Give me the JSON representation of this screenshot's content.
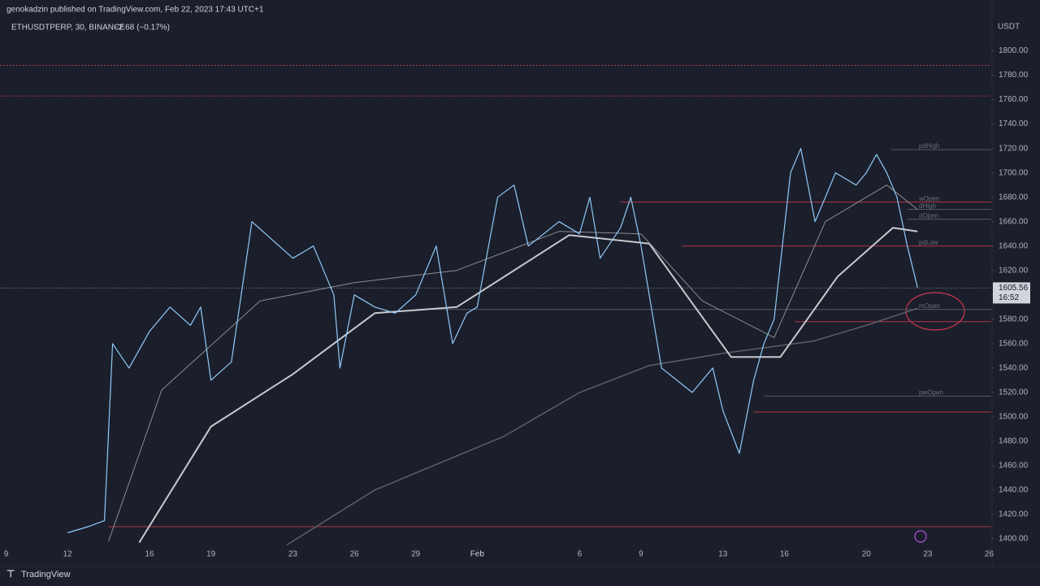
{
  "header": "genokadzin published on TradingView.com, Feb 22, 2023 17:43 UTC+1",
  "footer": "TradingView",
  "chart_data": {
    "type": "line",
    "symbol": "ETHUSDTPERP, 30, BINANCE",
    "change": "−2.68 (−0.17%)",
    "currency": "USDT",
    "xlim": [
      -0.3,
      48.1
    ],
    "ylim": [
      1392,
      1825
    ],
    "xticks": [
      {
        "value": 0,
        "label": "9"
      },
      {
        "value": 3,
        "label": "12"
      },
      {
        "value": 7,
        "label": "16"
      },
      {
        "value": 10,
        "label": "19"
      },
      {
        "value": 14,
        "label": "23"
      },
      {
        "value": 17,
        "label": "26"
      },
      {
        "value": 20,
        "label": "29"
      },
      {
        "value": 23,
        "label": "Feb"
      },
      {
        "value": 28,
        "label": "6"
      },
      {
        "value": 31,
        "label": "9"
      },
      {
        "value": 35,
        "label": "13"
      },
      {
        "value": 38,
        "label": "16"
      },
      {
        "value": 42,
        "label": "20"
      },
      {
        "value": 45,
        "label": "23"
      },
      {
        "value": 48,
        "label": "26"
      }
    ],
    "yticks": [
      {
        "value": 1400,
        "label": "1400.00"
      },
      {
        "value": 1420,
        "label": "1420.00"
      },
      {
        "value": 1440,
        "label": "1440.00"
      },
      {
        "value": 1460,
        "label": "1460.00"
      },
      {
        "value": 1480,
        "label": "1480.00"
      },
      {
        "value": 1500,
        "label": "1500.00"
      },
      {
        "value": 1520,
        "label": "1520.00"
      },
      {
        "value": 1540,
        "label": "1540.00"
      },
      {
        "value": 1560,
        "label": "1560.00"
      },
      {
        "value": 1580,
        "label": "1580.00"
      },
      {
        "value": 1600,
        "label": "1600.00"
      },
      {
        "value": 1620,
        "label": "1620.00"
      },
      {
        "value": 1640,
        "label": "1640.00"
      },
      {
        "value": 1660,
        "label": "1660.00"
      },
      {
        "value": 1680,
        "label": "1680.00"
      },
      {
        "value": 1700,
        "label": "1700.00"
      },
      {
        "value": 1720,
        "label": "1720.00"
      },
      {
        "value": 1740,
        "label": "1740.00"
      },
      {
        "value": 1760,
        "label": "1760.00"
      },
      {
        "value": 1780,
        "label": "1780.00"
      },
      {
        "value": 1800,
        "label": "1800.00"
      }
    ],
    "series": [
      {
        "color": "#5d6069",
        "x": [
          13.7,
          18,
          24.3,
          28,
          31.4,
          35,
          39.4,
          42,
          44.5
        ],
        "values": [
          1395,
          1440,
          1484,
          1520,
          1542,
          1552,
          1562,
          1575,
          1589
        ]
      },
      {
        "color": "#c8c9cc",
        "x": [
          6.5,
          10,
          14,
          18,
          22,
          27.5,
          31.4,
          35.4,
          37.8,
          40.6,
          43.3,
          44.5
        ],
        "values": [
          1397,
          1492,
          1535,
          1585,
          1590,
          1649,
          1642,
          1549,
          1549,
          1615,
          1655,
          1652
        ]
      },
      {
        "color": "#8a8d95",
        "x": [
          5,
          7.6,
          12.4,
          17,
          22,
          27,
          31,
          34,
          37.5,
          40,
          43,
          44.5
        ],
        "values": [
          1398,
          1522,
          1595,
          1610,
          1620,
          1652,
          1650,
          1595,
          1565,
          1660,
          1690,
          1670
        ]
      },
      {
        "color": "#90caf9",
        "x": [
          3,
          4,
          4.8,
          5.2,
          6,
          7,
          8,
          9,
          9.5,
          10,
          11,
          12,
          13,
          14,
          15,
          16,
          16.3,
          17,
          18,
          19,
          20,
          21,
          21.8,
          22.5,
          23,
          24,
          24.8,
          25.5,
          27,
          28,
          28.5,
          29,
          30,
          30.5,
          31,
          31.8,
          32,
          33.5,
          34.5,
          35,
          35.8,
          36.5,
          37,
          37.5,
          38.3,
          38.8,
          39.5,
          40.5,
          41.5,
          42,
          42.5,
          43,
          43.5,
          44,
          44.5
        ],
        "values": [
          1405,
          1410,
          1415,
          1560,
          1540,
          1570,
          1590,
          1575,
          1590,
          1530,
          1545,
          1660,
          1645,
          1630,
          1640,
          1600,
          1540,
          1600,
          1590,
          1585,
          1600,
          1640,
          1560,
          1585,
          1590,
          1680,
          1690,
          1640,
          1660,
          1650,
          1680,
          1630,
          1655,
          1680,
          1640,
          1560,
          1540,
          1520,
          1540,
          1505,
          1470,
          1530,
          1560,
          1580,
          1700,
          1720,
          1660,
          1700,
          1690,
          1700,
          1715,
          1700,
          1680,
          1640,
          1606
        ]
      }
    ],
    "levels": [
      {
        "value": 1788,
        "from": -0.3,
        "color": "#b2344a"
      },
      {
        "value": 1763,
        "from": -0.3,
        "color": "#b2344a"
      },
      {
        "value": 1719,
        "from": 43.2,
        "color": "#555a66",
        "label": "pdHigh"
      },
      {
        "value": 1676,
        "from": 30,
        "color": "#b2344a",
        "label": "wOpen"
      },
      {
        "value": 1670,
        "from": 44,
        "color": "#555a66",
        "label": "dHigh"
      },
      {
        "value": 1662,
        "from": 44,
        "color": "#555a66",
        "label": "dOpen"
      },
      {
        "value": 1640,
        "from": 33,
        "color": "#b2344a",
        "label": "pdLow"
      },
      {
        "value": 1588,
        "from": 20,
        "color": "#555a66",
        "label": "mOpen"
      },
      {
        "value": 1578,
        "from": 38.5,
        "color": "#b2344a"
      },
      {
        "value": 1517,
        "from": 37,
        "color": "#555a66",
        "label": "pwOpen"
      },
      {
        "value": 1504,
        "from": 36.5,
        "color": "#b2344a"
      },
      {
        "value": 1410,
        "from": 5,
        "color": "#b2344a"
      }
    ],
    "last_price": 1605.56,
    "countdown": "16:52"
  }
}
